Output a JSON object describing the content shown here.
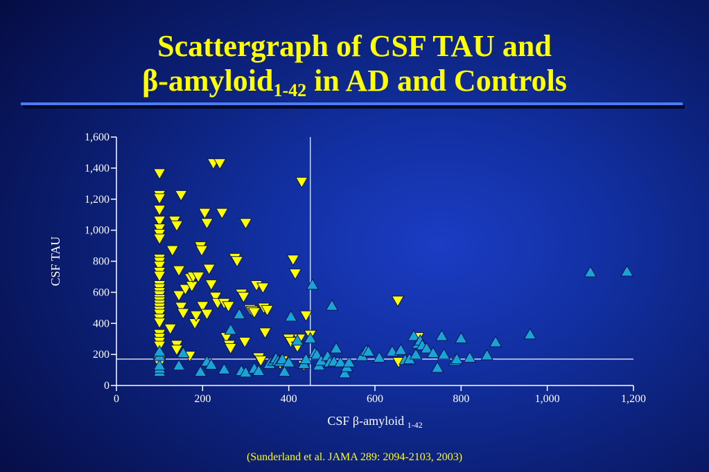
{
  "title": {
    "line1": "Scattergraph of CSF TAU and",
    "line2_symbol": "β",
    "line2_main": "-amyloid",
    "line2_subscript": "1-42",
    "line2_rest": " in AD and Controls"
  },
  "citation": "(Sunderland et al. JAMA 289: 2094-2103, 2003)",
  "colors": {
    "ad_marker": "#ffff00",
    "control_marker": "#1aa3d6",
    "title": "#ffff00",
    "rule": "#4f7bf0"
  },
  "chart_data": {
    "type": "scatter",
    "xlabel": "CSF β-amyloid",
    "xlabel_subscript": "1-42",
    "ylabel": "CSF TAU",
    "xlim": [
      0,
      1200
    ],
    "ylim": [
      0,
      1600
    ],
    "x_ticks": [
      0,
      200,
      400,
      600,
      800,
      1000,
      1200
    ],
    "x_tick_labels": [
      "0",
      "200",
      "400",
      "600",
      "800",
      "1,000",
      "1,200"
    ],
    "y_ticks": [
      0,
      200,
      400,
      600,
      800,
      1000,
      1200,
      1400,
      1600
    ],
    "y_tick_labels": [
      "0",
      "200",
      "400",
      "600",
      "800",
      "1,000",
      "1,200",
      "1,400",
      "1,600"
    ],
    "cutoff_lines": {
      "x": 450,
      "y": 170
    },
    "series": [
      {
        "marker": "triangle-down",
        "color": "#ffff00",
        "points": [
          [
            100,
            1365
          ],
          [
            100,
            1225
          ],
          [
            100,
            1205
          ],
          [
            100,
            1130
          ],
          [
            100,
            1060
          ],
          [
            100,
            1010
          ],
          [
            100,
            975
          ],
          [
            100,
            945
          ],
          [
            100,
            815
          ],
          [
            100,
            795
          ],
          [
            100,
            770
          ],
          [
            100,
            730
          ],
          [
            100,
            705
          ],
          [
            100,
            645
          ],
          [
            100,
            625
          ],
          [
            100,
            600
          ],
          [
            100,
            580
          ],
          [
            100,
            555
          ],
          [
            100,
            540
          ],
          [
            100,
            520
          ],
          [
            100,
            500
          ],
          [
            100,
            480
          ],
          [
            100,
            460
          ],
          [
            100,
            430
          ],
          [
            100,
            405
          ],
          [
            100,
            330
          ],
          [
            100,
            305
          ],
          [
            100,
            280
          ],
          [
            100,
            255
          ],
          [
            100,
            180
          ],
          [
            100,
            160
          ],
          [
            100,
            140
          ],
          [
            125,
            365
          ],
          [
            130,
            870
          ],
          [
            135,
            1060
          ],
          [
            140,
            1030
          ],
          [
            145,
            740
          ],
          [
            150,
            1225
          ],
          [
            140,
            260
          ],
          [
            140,
            230
          ],
          [
            145,
            580
          ],
          [
            150,
            505
          ],
          [
            155,
            465
          ],
          [
            160,
            620
          ],
          [
            170,
            190
          ],
          [
            172,
            690
          ],
          [
            175,
            640
          ],
          [
            178,
            700
          ],
          [
            182,
            400
          ],
          [
            185,
            450
          ],
          [
            190,
            700
          ],
          [
            195,
            895
          ],
          [
            198,
            870
          ],
          [
            200,
            510
          ],
          [
            205,
            1110
          ],
          [
            210,
            1045
          ],
          [
            210,
            460
          ],
          [
            215,
            750
          ],
          [
            220,
            650
          ],
          [
            225,
            1430
          ],
          [
            230,
            570
          ],
          [
            235,
            530
          ],
          [
            240,
            1430
          ],
          [
            245,
            1110
          ],
          [
            250,
            530
          ],
          [
            255,
            310
          ],
          [
            260,
            510
          ],
          [
            262,
            260
          ],
          [
            265,
            240
          ],
          [
            275,
            820
          ],
          [
            280,
            800
          ],
          [
            290,
            590
          ],
          [
            295,
            570
          ],
          [
            298,
            280
          ],
          [
            300,
            1045
          ],
          [
            310,
            490
          ],
          [
            315,
            480
          ],
          [
            320,
            470
          ],
          [
            325,
            645
          ],
          [
            330,
            180
          ],
          [
            335,
            160
          ],
          [
            340,
            630
          ],
          [
            342,
            500
          ],
          [
            345,
            340
          ],
          [
            350,
            485
          ],
          [
            380,
            140
          ],
          [
            385,
            160
          ],
          [
            400,
            300
          ],
          [
            405,
            280
          ],
          [
            410,
            810
          ],
          [
            415,
            720
          ],
          [
            420,
            250
          ],
          [
            425,
            300
          ],
          [
            430,
            1310
          ],
          [
            435,
            130
          ],
          [
            440,
            450
          ],
          [
            450,
            325
          ],
          [
            653,
            545
          ],
          [
            655,
            150
          ],
          [
            700,
            310
          ]
        ]
      },
      {
        "marker": "triangle-up",
        "color": "#1aa3d6",
        "points": [
          [
            100,
            90
          ],
          [
            100,
            110
          ],
          [
            100,
            130
          ],
          [
            100,
            190
          ],
          [
            100,
            220
          ],
          [
            145,
            130
          ],
          [
            155,
            210
          ],
          [
            195,
            90
          ],
          [
            210,
            155
          ],
          [
            220,
            135
          ],
          [
            250,
            105
          ],
          [
            265,
            360
          ],
          [
            285,
            460
          ],
          [
            290,
            95
          ],
          [
            300,
            85
          ],
          [
            320,
            110
          ],
          [
            330,
            95
          ],
          [
            355,
            140
          ],
          [
            365,
            160
          ],
          [
            370,
            175
          ],
          [
            375,
            160
          ],
          [
            380,
            155
          ],
          [
            385,
            170
          ],
          [
            390,
            90
          ],
          [
            400,
            150
          ],
          [
            405,
            445
          ],
          [
            420,
            290
          ],
          [
            435,
            140
          ],
          [
            440,
            170
          ],
          [
            450,
            305
          ],
          [
            455,
            650
          ],
          [
            460,
            210
          ],
          [
            465,
            200
          ],
          [
            470,
            130
          ],
          [
            475,
            160
          ],
          [
            490,
            190
          ],
          [
            495,
            150
          ],
          [
            500,
            515
          ],
          [
            505,
            155
          ],
          [
            510,
            240
          ],
          [
            520,
            150
          ],
          [
            530,
            80
          ],
          [
            535,
            120
          ],
          [
            540,
            150
          ],
          [
            570,
            190
          ],
          [
            580,
            225
          ],
          [
            585,
            220
          ],
          [
            610,
            180
          ],
          [
            640,
            220
          ],
          [
            660,
            230
          ],
          [
            670,
            165
          ],
          [
            680,
            170
          ],
          [
            690,
            320
          ],
          [
            695,
            200
          ],
          [
            700,
            270
          ],
          [
            705,
            290
          ],
          [
            710,
            260
          ],
          [
            720,
            240
          ],
          [
            735,
            210
          ],
          [
            745,
            115
          ],
          [
            755,
            320
          ],
          [
            760,
            200
          ],
          [
            785,
            160
          ],
          [
            790,
            170
          ],
          [
            800,
            305
          ],
          [
            820,
            180
          ],
          [
            860,
            195
          ],
          [
            880,
            280
          ],
          [
            960,
            330
          ],
          [
            1100,
            730
          ],
          [
            1185,
            735
          ]
        ]
      }
    ]
  }
}
